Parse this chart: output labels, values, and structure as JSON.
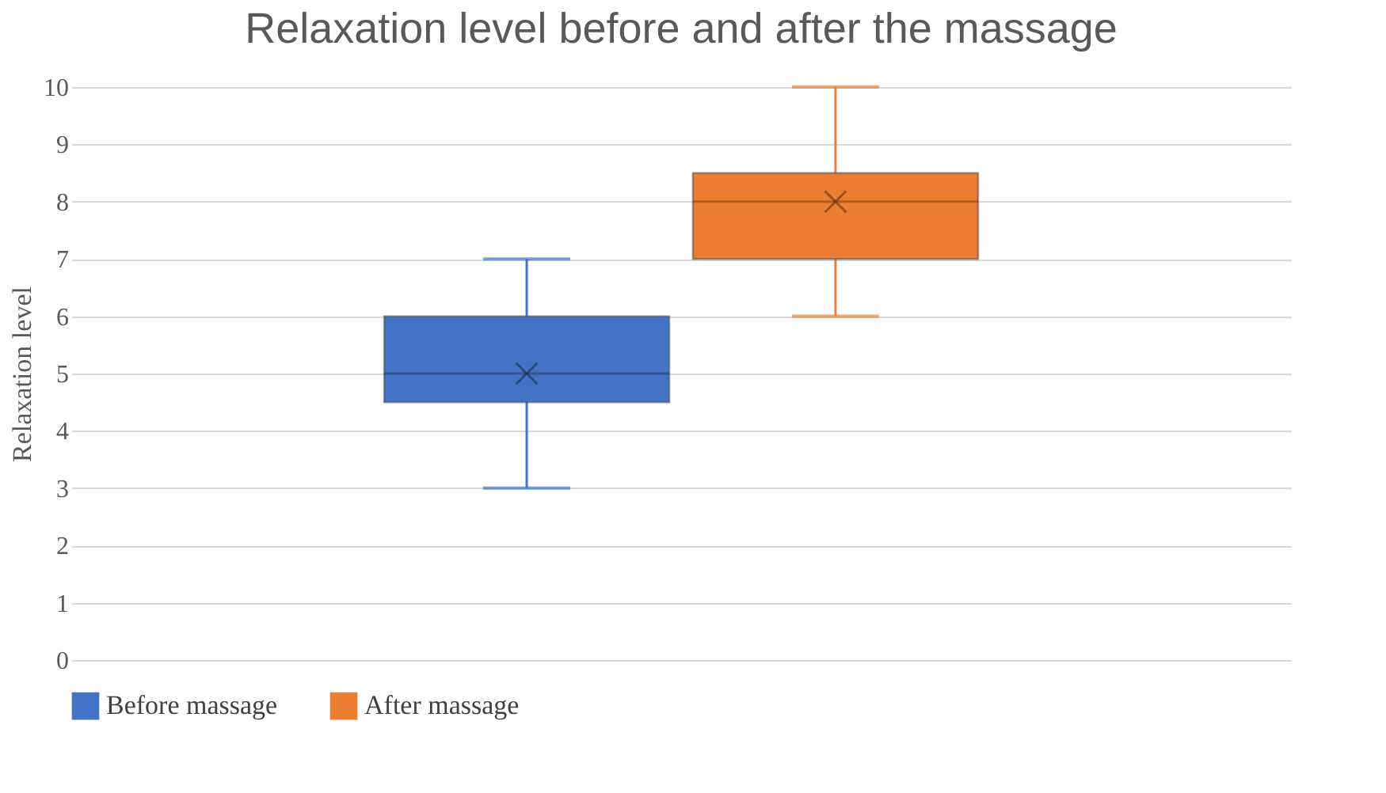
{
  "chart_data": {
    "type": "box",
    "title": "Relaxation level before and after the massage",
    "ylabel": "Relaxation level",
    "categories": [
      null
    ],
    "series": [
      {
        "name": "Before massage",
        "color": "#4472c4",
        "boxes": [
          {
            "low": 3,
            "q1": 4.5,
            "median": 5,
            "q3": 6,
            "high": 7,
            "mean": 5
          }
        ]
      },
      {
        "name": "After massage",
        "color": "#ed7d31",
        "boxes": [
          {
            "low": 6,
            "q1": 7,
            "median": 8,
            "q3": 8.5,
            "high": 10,
            "mean": 8
          }
        ]
      }
    ],
    "ylim": [
      0,
      10
    ],
    "yticks": [
      0,
      1,
      2,
      3,
      4,
      5,
      6,
      7,
      8,
      9,
      10
    ],
    "grid": "y",
    "legend": "bottom"
  }
}
